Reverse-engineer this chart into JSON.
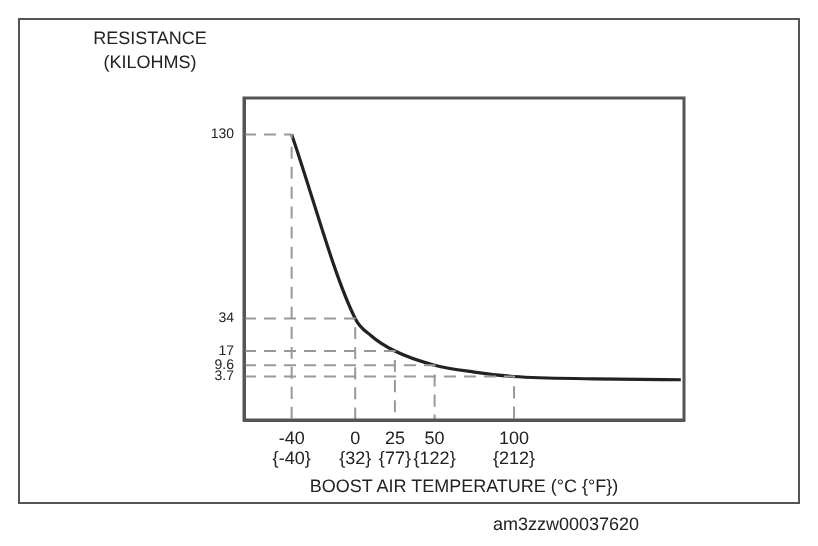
{
  "chart_data": {
    "type": "line",
    "ylabel": "RESISTANCE\n(KILOHMS)",
    "xlabel": "BOOST AIR TEMPERATURE (°C {°F})",
    "annotations": [
      "am3zzw00037620"
    ],
    "x": [
      -40,
      0,
      10,
      25,
      50,
      75,
      100,
      150,
      205
    ],
    "series": [
      {
        "color": "#999999",
        "line_style": "dashed",
        "x": [
          -70,
          -40,
          -40
        ],
        "values": [
          130,
          130,
          -19
        ]
      },
      {
        "color": "#999999",
        "line_style": "dashed",
        "x": [
          -70,
          0,
          0
        ],
        "values": [
          34,
          34,
          -19
        ]
      },
      {
        "color": "#999999",
        "line_style": "dashed",
        "x": [
          -70,
          25,
          25
        ],
        "values": [
          17,
          17,
          -19
        ]
      },
      {
        "color": "#999999",
        "line_style": "dashed",
        "x": [
          -70,
          50,
          50
        ],
        "values": [
          9.6,
          9.6,
          -19
        ]
      },
      {
        "color": "#999999",
        "line_style": "dashed",
        "x": [
          -70,
          100,
          100
        ],
        "values": [
          3.7,
          3.7,
          -19
        ]
      },
      {
        "color": "#222222",
        "values": [
          130,
          34,
          25,
          17,
          9.6,
          6,
          3.7,
          2.5,
          2
        ]
      }
    ],
    "xlim": [
      -70,
      207
    ],
    "xticks": [
      -40,
      0,
      25,
      50,
      100
    ],
    "x2lim": [
      -94,
      404.6
    ],
    "x2ticks": [
      {
        "value": -40,
        "label": "{-40}"
      },
      {
        "value": 32,
        "label": "{32}"
      },
      {
        "value": 77,
        "label": "{77}"
      },
      {
        "value": 122,
        "label": "{122}"
      },
      {
        "value": 212,
        "label": "{212}"
      }
    ],
    "ylim": [
      -19,
      149
    ],
    "yticks": [
      130,
      34,
      17,
      9.6,
      3.7
    ],
    "marker": "none",
    "legend": false
  }
}
